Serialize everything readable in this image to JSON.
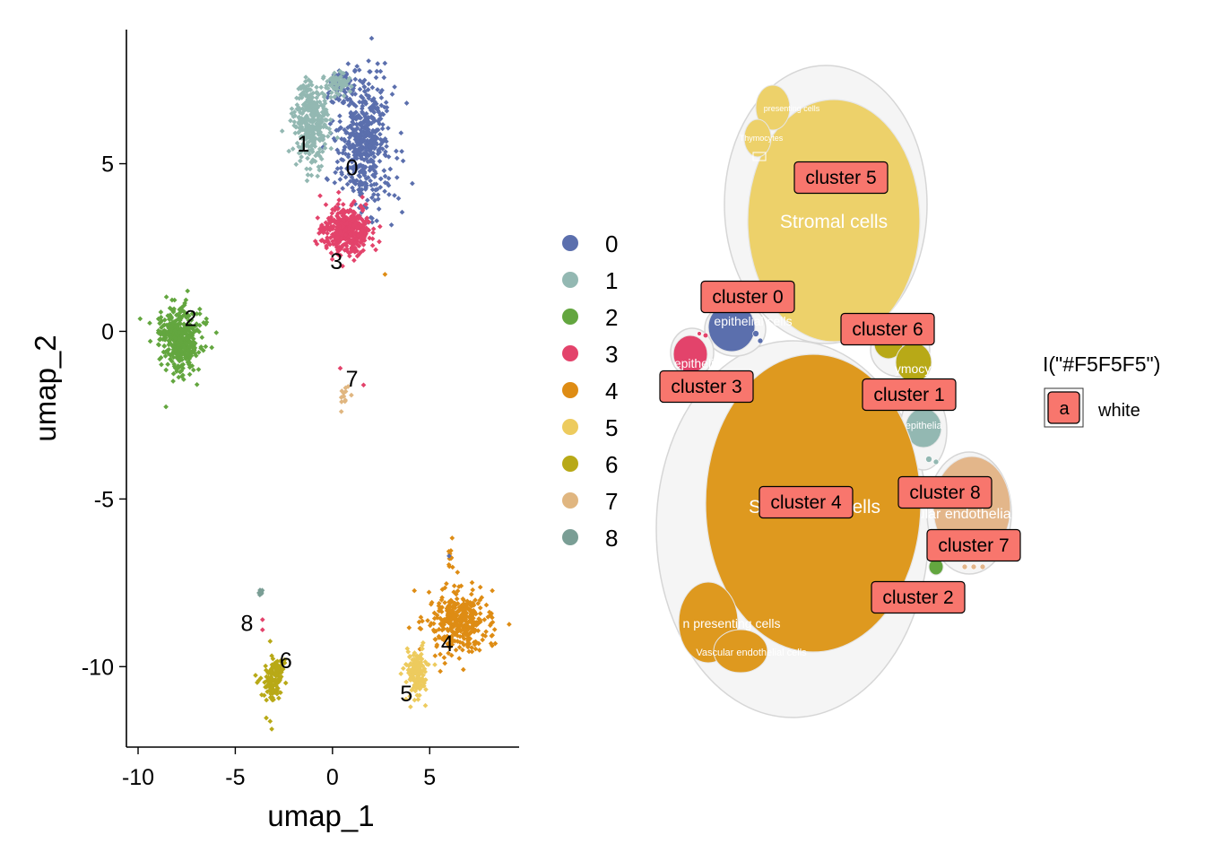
{
  "chart_data": [
    {
      "type": "scatter",
      "title": "",
      "xlabel": "umap_1",
      "ylabel": "umap_2",
      "xlim": [
        -10.6,
        9.6
      ],
      "ylim": [
        -12.4,
        9.0
      ],
      "xticks": [
        -10,
        -5,
        0,
        5
      ],
      "yticks": [
        -10,
        -5,
        0,
        5
      ],
      "tick_labels_x": [
        "-10",
        "-5",
        "0",
        "5"
      ],
      "tick_labels_y": [
        "-10",
        "-5",
        "0",
        "5"
      ],
      "grid": false,
      "legend_position": "right",
      "series": [
        {
          "name": "0",
          "color": "#5B6FAD",
          "label_pos": [
            1.0,
            4.9
          ],
          "clusters": [
            {
              "x": 1.6,
              "y": 5.6,
              "sx": 1.1,
              "sy": 1.5,
              "n": 520
            },
            {
              "x": 0.5,
              "y": 7.3,
              "sx": 0.5,
              "sy": 0.4,
              "n": 60
            }
          ]
        },
        {
          "name": "1",
          "color": "#93B8B2",
          "label_pos": [
            -1.5,
            5.6
          ],
          "clusters": [
            {
              "x": -1.1,
              "y": 6.2,
              "sx": 0.7,
              "sy": 0.9,
              "n": 340
            },
            {
              "x": 0.2,
              "y": 7.4,
              "sx": 0.5,
              "sy": 0.3,
              "n": 60
            }
          ]
        },
        {
          "name": "2",
          "color": "#63A63F",
          "label_pos": [
            -7.3,
            0.4
          ],
          "clusters": [
            {
              "x": -7.9,
              "y": -0.2,
              "sx": 0.8,
              "sy": 0.75,
              "n": 420
            }
          ]
        },
        {
          "name": "3",
          "color": "#E3436B",
          "label_pos": [
            0.2,
            2.1
          ],
          "clusters": [
            {
              "x": 0.7,
              "y": 3.0,
              "sx": 1.0,
              "sy": 0.55,
              "n": 380
            }
          ]
        },
        {
          "name": "4",
          "color": "#DE8C14",
          "label_pos": [
            5.9,
            -9.3
          ],
          "clusters": [
            {
              "x": 6.4,
              "y": -8.7,
              "sx": 1.3,
              "sy": 0.8,
              "n": 360
            },
            {
              "x": 6.1,
              "y": -6.6,
              "sx": 0.1,
              "sy": 0.4,
              "n": 10
            }
          ]
        },
        {
          "name": "5",
          "color": "#EDCB5E",
          "label_pos": [
            3.8,
            -10.8
          ],
          "clusters": [
            {
              "x": 4.3,
              "y": -10.2,
              "sx": 0.45,
              "sy": 0.55,
              "n": 130
            }
          ]
        },
        {
          "name": "6",
          "color": "#B8A917",
          "label_pos": [
            -2.4,
            -9.8
          ],
          "clusters": [
            {
              "x": -3.1,
              "y": -10.4,
              "sx": 0.45,
              "sy": 0.55,
              "n": 130
            }
          ]
        },
        {
          "name": "7",
          "color": "#E0B680",
          "label_pos": [
            1.0,
            -1.4
          ],
          "clusters": [
            {
              "x": 0.6,
              "y": -2.0,
              "sx": 0.25,
              "sy": 0.35,
              "n": 14
            }
          ]
        },
        {
          "name": "8",
          "color": "#7A9E95",
          "label_pos": [
            -4.4,
            -8.7
          ],
          "clusters": [
            {
              "x": -3.7,
              "y": -7.8,
              "sx": 0.08,
              "sy": 0.12,
              "n": 8
            }
          ]
        }
      ],
      "extra_points": [
        {
          "x": 2.7,
          "y": 1.7,
          "color": "#DE8C14"
        },
        {
          "x": 0.4,
          "y": -1.1,
          "color": "#E3436B"
        },
        {
          "x": 1.6,
          "y": -1.6,
          "color": "#E3436B"
        },
        {
          "x": 6.0,
          "y": -6.7,
          "color": "#5B6FAD"
        },
        {
          "x": -3.6,
          "y": -8.6,
          "color": "#E3436B"
        },
        {
          "x": -3.6,
          "y": -8.9,
          "color": "#E3436B"
        }
      ]
    },
    {
      "type": "circle_packing",
      "labels": {
        "stromal_cells": "Stromal cells",
        "antigen_presenting_cells": "Antigen presenting cells",
        "thymocytes": "Thymocytes",
        "thymic_epithelial_cells": "Thymic epithelial cells",
        "vascular_endothelial_cells": "Vascular endothelial cells",
        "epithelial": "epitheli",
        "epithelial_cells": "epithelial cells",
        "presenting_cells_fragment": "presenting cells",
        "thymocytes_fragment": "Thymocytes",
        "stromal_fragment_left": "S",
        "stromal_fragment_right": "cells",
        "antigen_fragment": "n presenting cells",
        "vascular_fragment": "Vascular endothelial cells",
        "vascular_fragment_main": "Vascular endothelia",
        "thymic_fragment": "Thymic epithelia",
        "thymocytes_fragment2": "ymocyt"
      },
      "tags": [
        "cluster 5",
        "cluster 0",
        "cluster 6",
        "cluster 3",
        "cluster 1",
        "cluster 4",
        "cluster 8",
        "cluster 7",
        "cluster 2"
      ],
      "colors": {
        "background": "#F5F5F5",
        "tag_fill": "#F8766D",
        "cluster0": "#5B6FAD",
        "cluster1": "#93B8B2",
        "cluster2": "#63A63F",
        "cluster3": "#E3436B",
        "cluster4": "#DE991F",
        "cluster5": "#EDD16A",
        "cluster6": "#B8A917",
        "cluster7": "#E3B68A",
        "cluster8": "#7A9E95"
      },
      "legend": {
        "title": "I(\"#F5F5F5\")",
        "key_letter": "a",
        "key_label": "white"
      }
    }
  ]
}
